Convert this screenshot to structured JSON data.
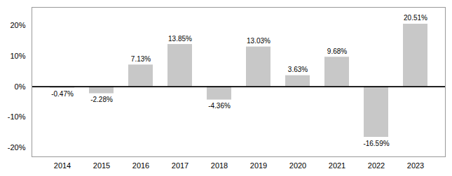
{
  "chart_data": {
    "type": "bar",
    "categories": [
      "2014",
      "2015",
      "2016",
      "2017",
      "2018",
      "2019",
      "2020",
      "2021",
      "2022",
      "2023"
    ],
    "values": [
      -0.47,
      -2.28,
      7.13,
      13.85,
      -4.36,
      13.03,
      3.63,
      9.68,
      -16.59,
      20.51
    ],
    "value_labels": [
      "-0.47%",
      "-2.28%",
      "7.13%",
      "13.85%",
      "-4.36%",
      "13.03%",
      "3.63%",
      "9.68%",
      "-16.59%",
      "20.51%"
    ],
    "data_labels": true,
    "color": "#c8c8c8",
    "ylim": [
      -23,
      26
    ],
    "yticks": [
      {
        "value": -20,
        "label": "-20%"
      },
      {
        "value": -10,
        "label": "-10%"
      },
      {
        "value": 0,
        "label": "0%"
      },
      {
        "value": 10,
        "label": "10%"
      },
      {
        "value": 20,
        "label": "20%"
      }
    ],
    "grid": false
  }
}
